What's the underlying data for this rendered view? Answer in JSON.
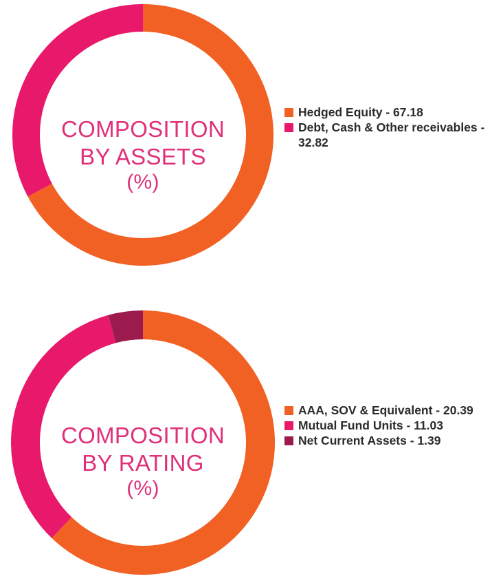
{
  "colors": {
    "orange": "#f26124",
    "pink": "#e8196a",
    "maroon": "#9b1b4f",
    "title": "#e0307a"
  },
  "chart_data": [
    {
      "type": "pie",
      "style": "donut",
      "center_title": [
        "COMPOSITION",
        "BY ASSETS",
        "(%)"
      ],
      "legend_position": "right",
      "series": [
        {
          "name": "Hedged Equity - 67.18",
          "value": 67.18,
          "color": "#f26124"
        },
        {
          "name": "Debt, Cash & Other receivables - 32.82",
          "value": 32.82,
          "color": "#e8196a"
        }
      ]
    },
    {
      "type": "pie",
      "style": "donut",
      "center_title": [
        "COMPOSITION",
        "BY RATING",
        "(%)"
      ],
      "legend_position": "right",
      "series": [
        {
          "name": "AAA, SOV & Equivalent - 20.39",
          "value": 20.39,
          "color": "#f26124"
        },
        {
          "name": "Mutual Fund Units - 11.03",
          "value": 11.03,
          "color": "#e8196a"
        },
        {
          "name": "Net Current Assets - 1.39",
          "value": 1.39,
          "color": "#9b1b4f"
        }
      ]
    }
  ]
}
